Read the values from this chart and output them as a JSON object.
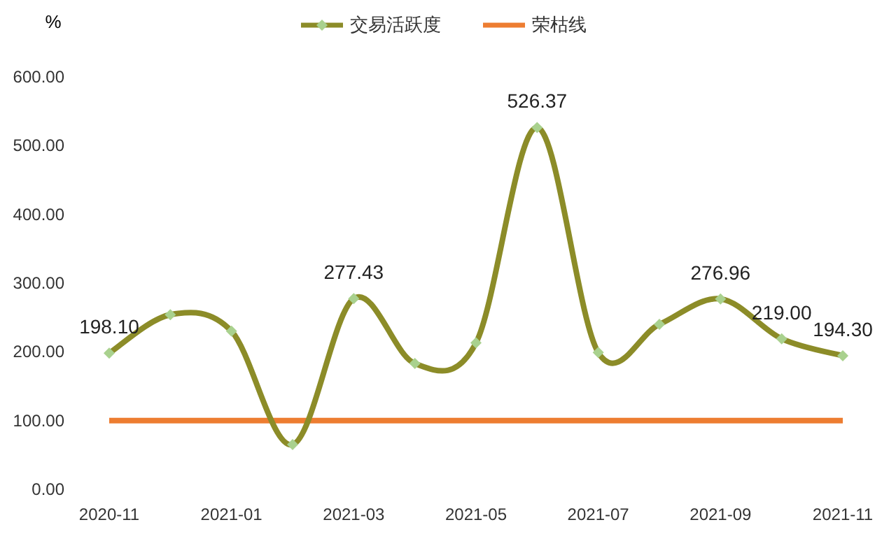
{
  "chart_data": {
    "type": "line",
    "ylabel": "%",
    "categories": [
      "2020-11",
      null,
      "2021-01",
      null,
      "2021-03",
      null,
      "2021-05",
      null,
      "2021-07",
      null,
      "2021-09",
      null,
      "2021-11"
    ],
    "series": [
      {
        "name": "交易活跃度",
        "color": "#8c8c28",
        "marker": "diamond",
        "values": [
          198.1,
          254,
          230,
          65,
          277.43,
          183,
          213,
          526.37,
          199,
          240,
          276.96,
          219.0,
          194.3
        ],
        "value_labels": [
          "198.10",
          null,
          null,
          null,
          "277.43",
          null,
          null,
          "526.37",
          null,
          null,
          "276.96",
          "219.00",
          "194.30"
        ]
      },
      {
        "name": "荣枯线",
        "color": "#ed7d31",
        "marker": "none",
        "values": [
          100,
          100,
          100,
          100,
          100,
          100,
          100,
          100,
          100,
          100,
          100,
          100,
          100
        ]
      }
    ],
    "ylim": [
      0,
      600
    ],
    "yticks": [
      {
        "value": 0,
        "label": "0.00"
      },
      {
        "value": 100,
        "label": "100.00"
      },
      {
        "value": 200,
        "label": "200.00"
      },
      {
        "value": 300,
        "label": "300.00"
      },
      {
        "value": 400,
        "label": "400.00"
      },
      {
        "value": 500,
        "label": "500.00"
      },
      {
        "value": 600,
        "label": "600.00"
      }
    ],
    "grid": false,
    "legend": "top"
  }
}
